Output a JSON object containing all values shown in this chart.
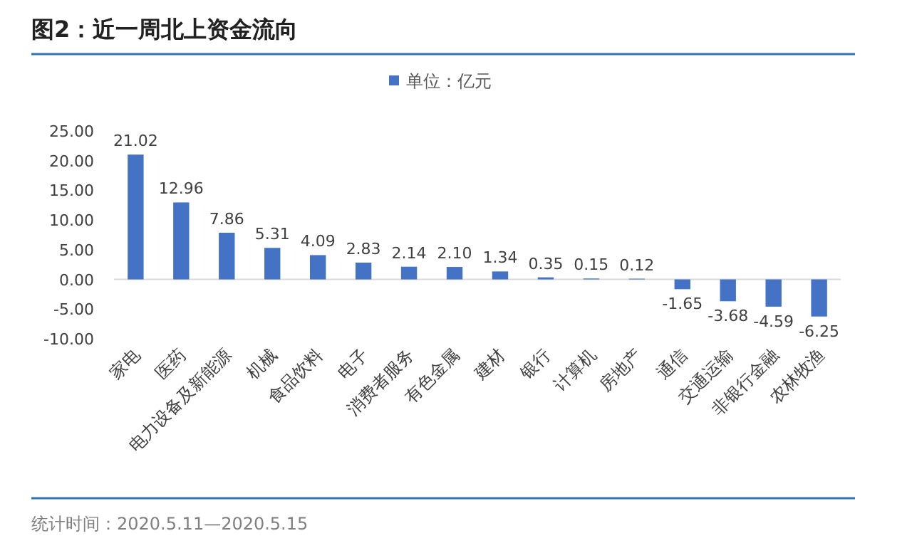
{
  "chart_data": {
    "type": "bar",
    "title": "图2：近一周北上资金流向",
    "categories": [
      "家电",
      "医药",
      "电力设备及新能源",
      "机械",
      "食品饮料",
      "电子",
      "消费者服务",
      "有色金属",
      "建材",
      "银行",
      "计算机",
      "房地产",
      "通信",
      "交通运输",
      "非银行金融",
      "农林牧渔"
    ],
    "series": [
      {
        "name": "单位：亿元",
        "color": "#4472c4",
        "values": [
          21.02,
          12.96,
          7.86,
          5.31,
          4.09,
          2.83,
          2.14,
          2.1,
          1.34,
          0.35,
          0.15,
          0.12,
          -1.65,
          -3.68,
          -4.59,
          -6.25
        ]
      }
    ],
    "ylim": [
      -10,
      25
    ],
    "yticks": [
      {
        "value": -10,
        "label": "-10.00"
      },
      {
        "value": -5,
        "label": "-5.00"
      },
      {
        "value": 0,
        "label": "0.00"
      },
      {
        "value": 5,
        "label": "5.00"
      },
      {
        "value": 10,
        "label": "10.00"
      },
      {
        "value": 15,
        "label": "15.00"
      },
      {
        "value": 20,
        "label": "20.00"
      },
      {
        "value": 25,
        "label": "25.00"
      }
    ],
    "value_labels": [
      "21.02",
      "12.96",
      "7.86",
      "5.31",
      "4.09",
      "2.83",
      "2.14",
      "2.10",
      "1.34",
      "0.35",
      "0.15",
      "0.12",
      "-1.65",
      "-3.68",
      "-4.59",
      "-6.25"
    ],
    "legend": "top",
    "annotations": [
      "统计时间：2020.5.11—2020.5.15"
    ]
  }
}
